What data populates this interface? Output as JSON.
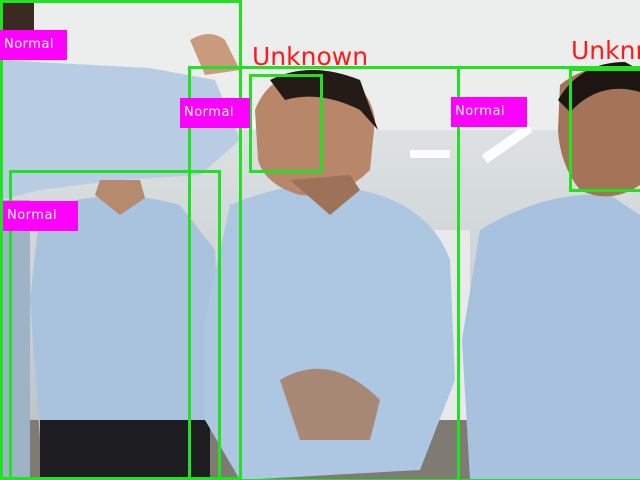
{
  "detections": [
    {
      "status": "Normal"
    },
    {
      "status": "Normal"
    },
    {
      "status": "Normal"
    },
    {
      "status": "Normal"
    }
  ],
  "faces": [
    {
      "identity": "Unknown"
    },
    {
      "identity": "Unknn"
    }
  ],
  "colors": {
    "box": "#22e022",
    "status_tag": "#ff00ff",
    "identity_text": "#ff1a1a",
    "shirt": "#a9c3df"
  }
}
